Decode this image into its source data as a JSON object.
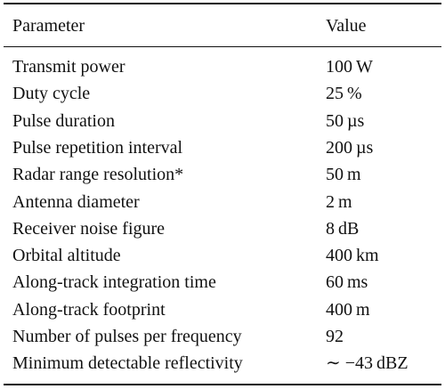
{
  "table": {
    "header": [
      "Parameter",
      "Value"
    ],
    "rows": [
      [
        "Transmit power",
        "100 W"
      ],
      [
        "Duty cycle",
        "25 %"
      ],
      [
        "Pulse duration",
        "50 µs"
      ],
      [
        "Pulse repetition interval",
        "200 µs"
      ],
      [
        "Radar range resolution*",
        "50 m"
      ],
      [
        "Antenna diameter",
        "2 m"
      ],
      [
        "Receiver noise figure",
        "8 dB"
      ],
      [
        "Orbital altitude",
        "400 km"
      ],
      [
        "Along-track integration time",
        "60 ms"
      ],
      [
        "Along-track footprint",
        "400 m"
      ],
      [
        "Number of pulses per frequency",
        "92"
      ],
      [
        "Minimum detectable reflectivity",
        "∼ −43 dBZ"
      ]
    ]
  }
}
